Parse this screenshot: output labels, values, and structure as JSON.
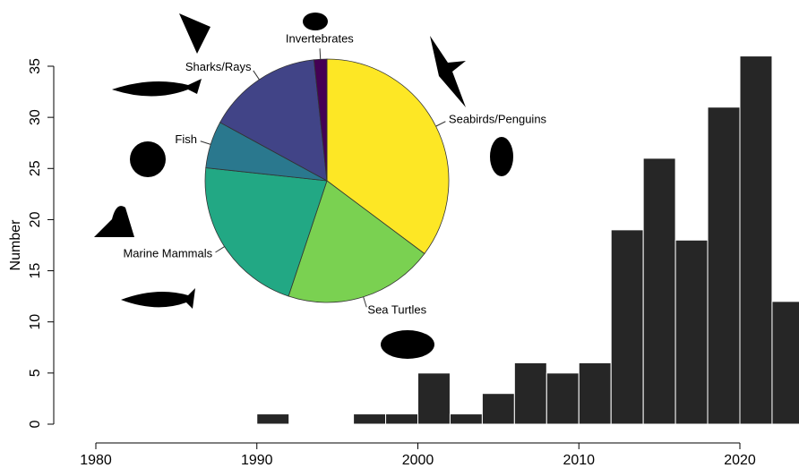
{
  "chart_data": [
    {
      "type": "histogram",
      "y_label": "Number",
      "color": "#262626",
      "bins": [
        1990,
        1992,
        1994,
        1996,
        1998,
        2000,
        2002,
        2004,
        2006,
        2008,
        2010,
        2012,
        2014,
        2016,
        2018,
        2020,
        2022,
        2024
      ],
      "values": [
        1,
        0,
        0,
        1,
        1,
        5,
        1,
        3,
        6,
        5,
        6,
        19,
        26,
        18,
        31,
        36,
        12
      ],
      "xlim": [
        1980,
        2020
      ],
      "xticks": [
        1980,
        1990,
        2000,
        2010,
        2020
      ],
      "ylim": [
        0,
        35
      ],
      "yticks": [
        0,
        5,
        10,
        15,
        20,
        25,
        30,
        35
      ]
    },
    {
      "type": "pie",
      "categories": [
        "Seabirds/Penguins",
        "Sea Turtles",
        "Marine Mammals",
        "Fish",
        "Sharks/Rays",
        "Invertebrates"
      ],
      "values": [
        62,
        35,
        38,
        11,
        27,
        3
      ],
      "colors": [
        "#FDE725",
        "#7AD151",
        "#22A884",
        "#2A788E",
        "#414487",
        "#440154"
      ]
    }
  ]
}
